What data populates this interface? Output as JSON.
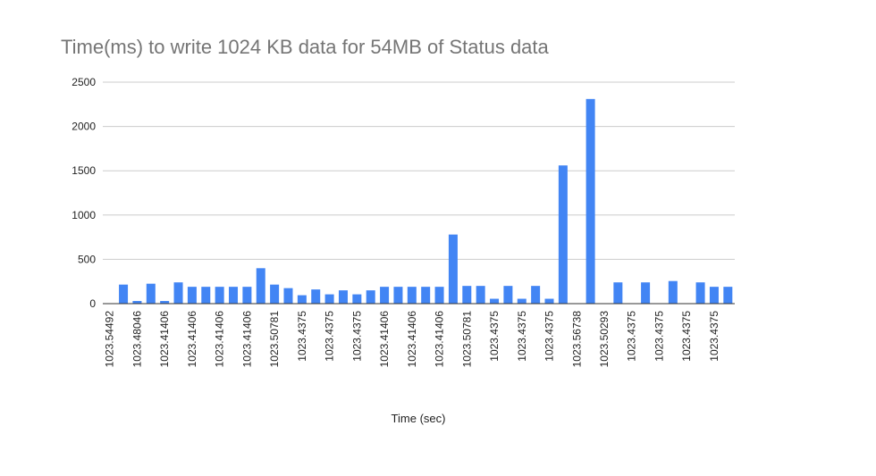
{
  "chart_data": {
    "type": "bar",
    "title": "Time(ms) to write 1024 KB data for 54MB of Status data",
    "x_label": "Time (sec)",
    "categories": [
      "1023.54492",
      null,
      "1023.48046",
      null,
      "1023.41406",
      null,
      "1023.41406",
      null,
      "1023.41406",
      null,
      "1023.41406",
      null,
      "1023.50781",
      null,
      "1023.4375",
      null,
      "1023.4375",
      null,
      "1023.4375",
      null,
      "1023.41406",
      null,
      "1023.41406",
      null,
      "1023.41406",
      null,
      "1023.50781",
      null,
      "1023.4375",
      null,
      "1023.4375",
      null,
      "1023.4375",
      null,
      "1023.56738",
      null,
      "1023.50293",
      null,
      "1023.4375",
      null,
      "1023.4375",
      null,
      "1023.4375",
      null,
      "1023.4375",
      null
    ],
    "values": [
      0,
      215,
      30,
      225,
      30,
      240,
      190,
      190,
      190,
      190,
      190,
      400,
      215,
      175,
      95,
      160,
      105,
      150,
      105,
      150,
      190,
      190,
      190,
      190,
      190,
      780,
      200,
      200,
      55,
      200,
      55,
      200,
      55,
      1560,
      0,
      2310,
      0,
      240,
      0,
      240,
      0,
      255,
      0,
      240,
      190,
      190
    ],
    "color": "#4285f4",
    "ylim": [
      0,
      2500
    ],
    "yticks": [
      0,
      500,
      1000,
      1500,
      2000,
      2500
    ],
    "grid": true
  }
}
